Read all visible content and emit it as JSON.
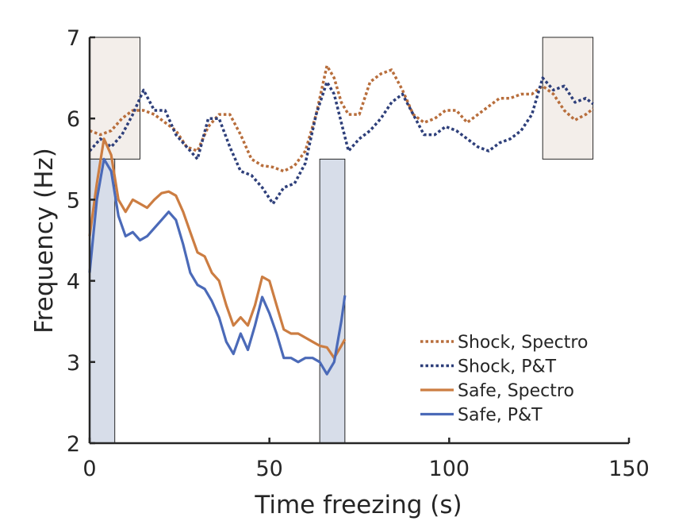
{
  "chart_data": {
    "type": "line",
    "xlabel": "Time freezing (s)",
    "ylabel": "Frequency (Hz)",
    "xlim": [
      0,
      150
    ],
    "ylim": [
      2,
      7
    ],
    "xticks": [
      0,
      50,
      100,
      150
    ],
    "xtick_labels": [
      "0",
      "50",
      "100",
      "150"
    ],
    "yticks": [
      2,
      3,
      4,
      5,
      6,
      7
    ],
    "ytick_labels": [
      "2",
      "3",
      "4",
      "5",
      "6",
      "7"
    ],
    "grid": false,
    "legend_position": "bottom-right",
    "shaded_regions": [
      {
        "x": [
          0,
          14
        ],
        "y": [
          5.5,
          7
        ],
        "color": "#f3eeea"
      },
      {
        "x": [
          126,
          140
        ],
        "y": [
          5.5,
          7
        ],
        "color": "#f3eeea"
      },
      {
        "x": [
          0,
          7
        ],
        "y": [
          2,
          5.5
        ],
        "color": "#d7dde9"
      },
      {
        "x": [
          64,
          71
        ],
        "y": [
          2,
          5.5
        ],
        "color": "#d7dde9"
      }
    ],
    "series": [
      {
        "name": "Shock, Spectro",
        "color": "#b86e3c",
        "style": "dotted",
        "x": [
          0,
          3,
          6,
          9,
          12,
          15,
          18,
          21,
          24,
          27,
          30,
          33,
          36,
          39,
          42,
          45,
          48,
          51,
          54,
          57,
          60,
          63,
          66,
          68,
          70,
          72,
          75,
          78,
          81,
          84,
          87,
          90,
          93,
          96,
          99,
          102,
          105,
          108,
          111,
          114,
          117,
          120,
          123,
          126,
          129,
          132,
          135,
          138,
          140
        ],
        "y": [
          5.85,
          5.8,
          5.85,
          6.0,
          6.1,
          6.1,
          6.05,
          5.95,
          5.85,
          5.65,
          5.6,
          5.9,
          6.05,
          6.05,
          5.8,
          5.5,
          5.42,
          5.4,
          5.35,
          5.42,
          5.6,
          6.05,
          6.65,
          6.5,
          6.2,
          6.05,
          6.05,
          6.45,
          6.55,
          6.6,
          6.35,
          6.05,
          5.95,
          6.0,
          6.1,
          6.1,
          5.95,
          6.05,
          6.15,
          6.25,
          6.25,
          6.3,
          6.3,
          6.4,
          6.3,
          6.1,
          5.98,
          6.05,
          6.12
        ]
      },
      {
        "name": "Shock, P&T",
        "color": "#2e3f7a",
        "style": "dotted",
        "x": [
          0,
          3,
          6,
          9,
          12,
          15,
          18,
          21,
          24,
          27,
          30,
          33,
          36,
          39,
          42,
          45,
          48,
          51,
          54,
          57,
          60,
          63,
          66,
          68,
          70,
          72,
          75,
          78,
          81,
          84,
          87,
          90,
          93,
          96,
          99,
          102,
          105,
          108,
          111,
          114,
          117,
          120,
          123,
          126,
          129,
          132,
          135,
          138,
          140
        ],
        "y": [
          5.6,
          5.75,
          5.65,
          5.8,
          6.05,
          6.35,
          6.1,
          6.1,
          5.8,
          5.65,
          5.5,
          6.0,
          6.0,
          5.65,
          5.35,
          5.3,
          5.15,
          4.95,
          5.15,
          5.2,
          5.45,
          6.05,
          6.45,
          6.3,
          5.95,
          5.6,
          5.75,
          5.85,
          6.0,
          6.2,
          6.3,
          6.05,
          5.8,
          5.8,
          5.9,
          5.85,
          5.75,
          5.65,
          5.6,
          5.7,
          5.75,
          5.85,
          6.05,
          6.5,
          6.35,
          6.4,
          6.2,
          6.25,
          6.18
        ]
      },
      {
        "name": "Safe, Spectro",
        "color": "#cc7d42",
        "style": "solid",
        "x": [
          0,
          2,
          4,
          6,
          8,
          10,
          12,
          14,
          16,
          18,
          20,
          22,
          24,
          26,
          28,
          30,
          32,
          34,
          36,
          38,
          40,
          42,
          44,
          46,
          48,
          50,
          52,
          54,
          56,
          58,
          60,
          62,
          64,
          66,
          68,
          70,
          71
        ],
        "y": [
          4.55,
          5.2,
          5.75,
          5.55,
          5.0,
          4.85,
          5.0,
          4.95,
          4.9,
          5.0,
          5.08,
          5.1,
          5.05,
          4.85,
          4.6,
          4.35,
          4.3,
          4.1,
          4.0,
          3.7,
          3.45,
          3.55,
          3.45,
          3.7,
          4.05,
          4.0,
          3.7,
          3.4,
          3.35,
          3.35,
          3.3,
          3.25,
          3.2,
          3.18,
          3.05,
          3.2,
          3.28
        ]
      },
      {
        "name": "Safe, P&T",
        "color": "#4b6ab8",
        "style": "solid",
        "x": [
          0,
          2,
          4,
          6,
          8,
          10,
          12,
          14,
          16,
          18,
          20,
          22,
          24,
          26,
          28,
          30,
          32,
          34,
          36,
          38,
          40,
          42,
          44,
          46,
          48,
          50,
          52,
          54,
          56,
          58,
          60,
          62,
          64,
          66,
          68,
          70,
          71
        ],
        "y": [
          4.1,
          5.0,
          5.5,
          5.35,
          4.8,
          4.55,
          4.6,
          4.5,
          4.55,
          4.65,
          4.75,
          4.85,
          4.75,
          4.45,
          4.1,
          3.95,
          3.9,
          3.75,
          3.55,
          3.25,
          3.1,
          3.35,
          3.15,
          3.45,
          3.8,
          3.6,
          3.35,
          3.05,
          3.05,
          3.0,
          3.05,
          3.05,
          3.0,
          2.85,
          3.0,
          3.5,
          3.82
        ]
      }
    ]
  }
}
